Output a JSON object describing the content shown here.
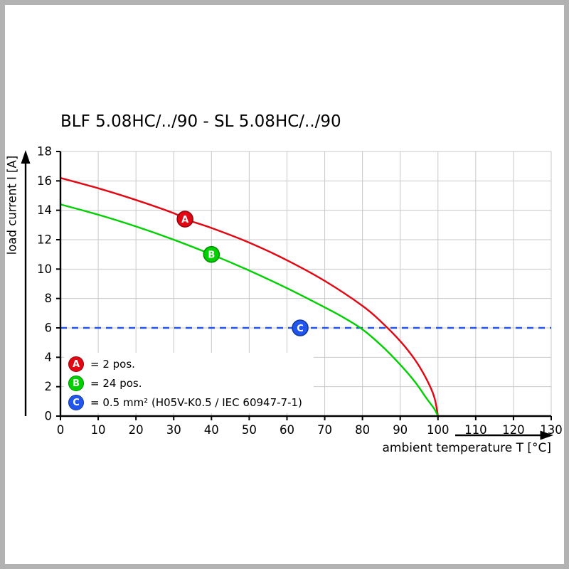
{
  "page": {
    "frame_color": "#b2b2b2",
    "background": "#ffffff"
  },
  "chart_data": {
    "type": "line",
    "title": "BLF 5.08HC/../90 - SL 5.08HC/../90",
    "xlabel": "ambient temperature T [°C]",
    "ylabel": "load current I [A]",
    "xlim": [
      0,
      130
    ],
    "ylim": [
      0,
      18
    ],
    "xticks": [
      0,
      10,
      20,
      30,
      40,
      50,
      60,
      70,
      80,
      90,
      100,
      110,
      120,
      130
    ],
    "yticks": [
      0,
      2,
      4,
      6,
      8,
      10,
      12,
      14,
      16,
      18
    ],
    "grid": true,
    "grid_color": "#c8c8c8",
    "axis_color": "#000000",
    "legend_position": "bottom-left",
    "series": [
      {
        "name": "A",
        "label": "= 2 pos.",
        "color": "#e30613",
        "stroke": "#9a040e",
        "dashed": false,
        "marker": [
          33,
          13.4
        ],
        "points": [
          [
            0,
            16.2
          ],
          [
            10,
            15.5
          ],
          [
            20,
            14.7
          ],
          [
            30,
            13.8
          ],
          [
            33,
            13.4
          ],
          [
            40,
            12.8
          ],
          [
            50,
            11.8
          ],
          [
            60,
            10.6
          ],
          [
            70,
            9.2
          ],
          [
            80,
            7.5
          ],
          [
            85,
            6.4
          ],
          [
            90,
            5.1
          ],
          [
            94,
            3.8
          ],
          [
            97,
            2.5
          ],
          [
            99,
            1.3
          ],
          [
            100,
            0
          ]
        ]
      },
      {
        "name": "B",
        "label": "= 24 pos.",
        "color": "#00d000",
        "stroke": "#008f00",
        "dashed": false,
        "marker": [
          40,
          11.0
        ],
        "points": [
          [
            0,
            14.4
          ],
          [
            10,
            13.7
          ],
          [
            20,
            12.9
          ],
          [
            30,
            12.0
          ],
          [
            40,
            11.0
          ],
          [
            50,
            9.9
          ],
          [
            60,
            8.7
          ],
          [
            70,
            7.4
          ],
          [
            75,
            6.7
          ],
          [
            80,
            5.9
          ],
          [
            85,
            4.8
          ],
          [
            90,
            3.5
          ],
          [
            94,
            2.3
          ],
          [
            97,
            1.2
          ],
          [
            99,
            0.5
          ],
          [
            100,
            0
          ]
        ]
      },
      {
        "name": "C",
        "label": "= 0.5 mm² (H05V-K0.5 / IEC 60947-7-1)",
        "color": "#2255ee",
        "stroke": "#123a9e",
        "dashed": true,
        "marker": [
          63.5,
          6
        ],
        "points": [
          [
            0,
            6
          ],
          [
            130,
            6
          ]
        ]
      }
    ]
  }
}
